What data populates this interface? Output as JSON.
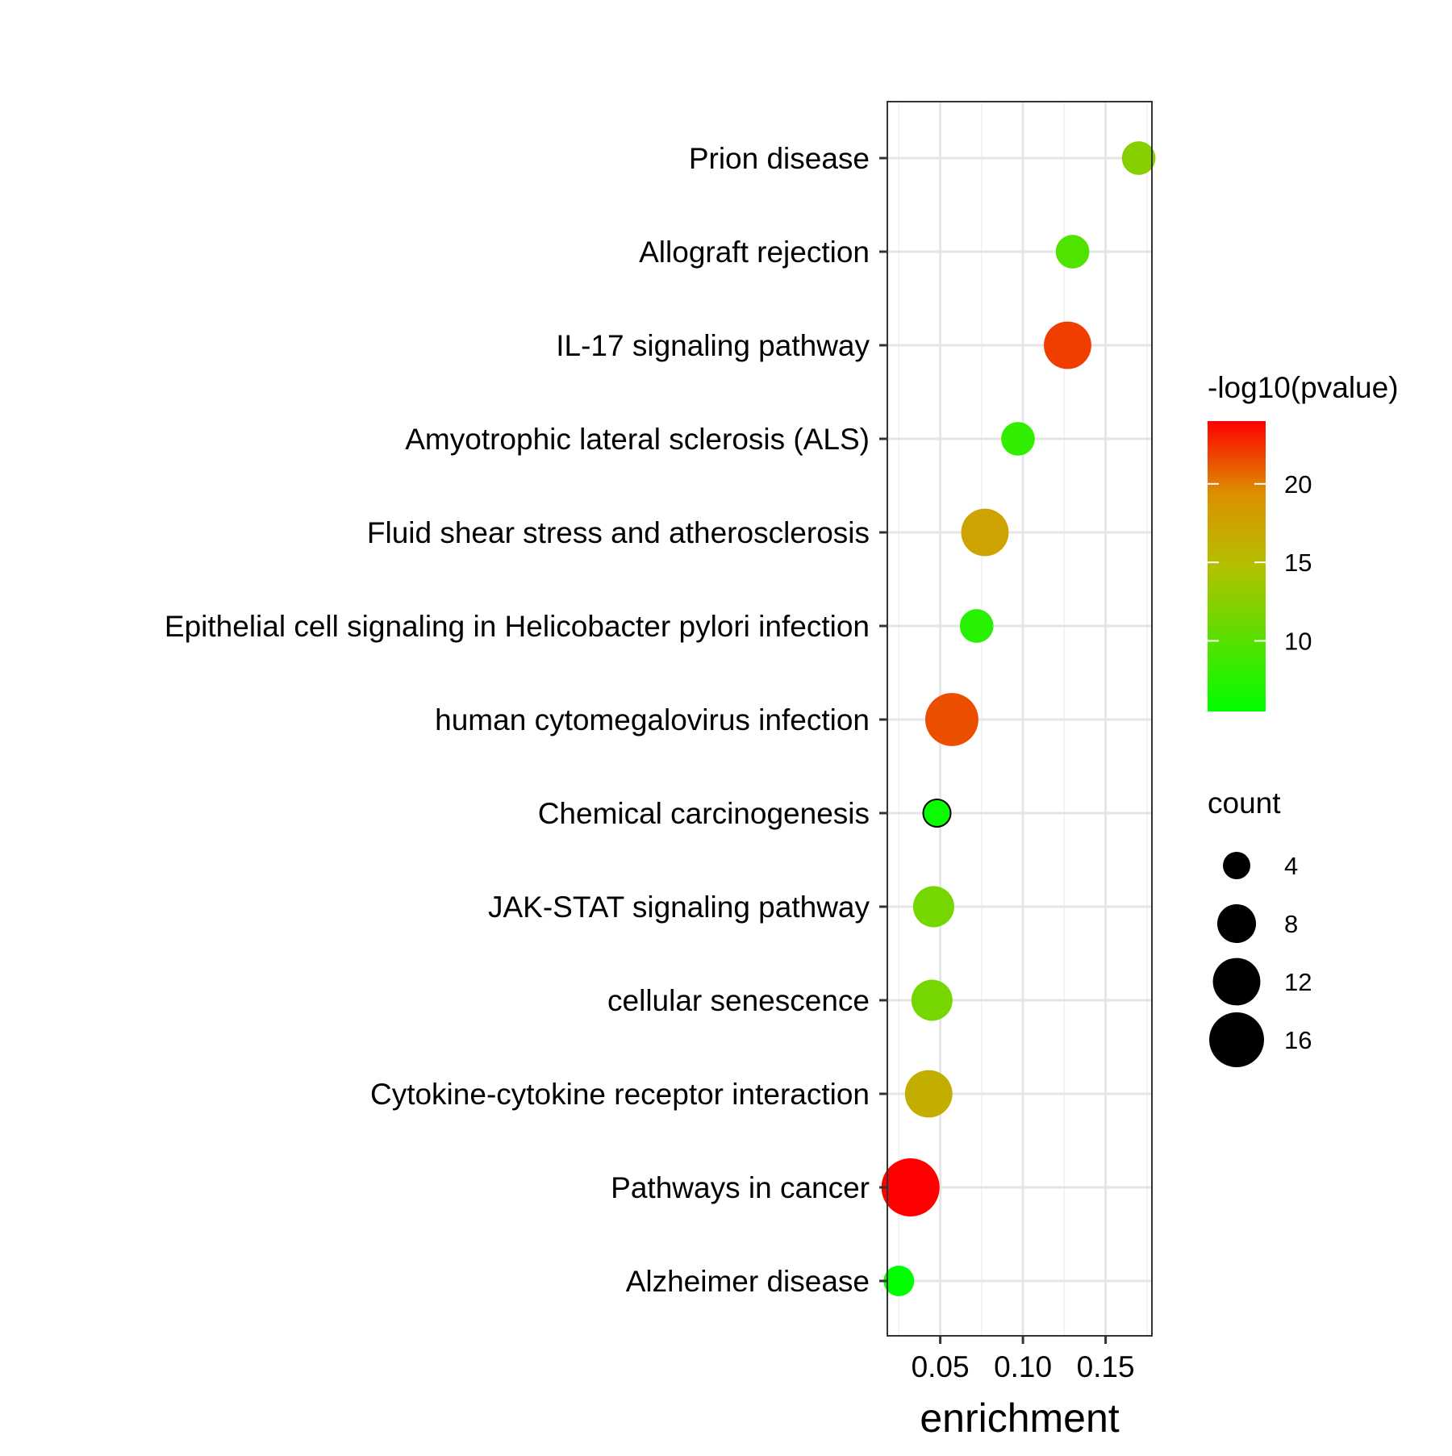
{
  "chart_data": {
    "type": "scatter",
    "xlabel": "enrichment",
    "ylabel": "",
    "xlim": [
      0.018,
      0.178
    ],
    "x_ticks": [
      0.05,
      0.1,
      0.15
    ],
    "x_tick_labels": [
      "0.05",
      "0.10",
      "0.15"
    ],
    "grid": true,
    "categories": [
      "Prion disease",
      "Allograft rejection",
      "IL-17 signaling pathway",
      "Amyotrophic lateral sclerosis (ALS)",
      "Fluid shear stress and atherosclerosis",
      "Epithelial cell signaling in Helicobacter pylori infection",
      "human cytomegalovirus infection",
      "Chemical carcinogenesis",
      "JAK-STAT signaling pathway",
      "cellular senescence",
      "Cytokine-cytokine receptor interaction",
      "Pathways in cancer",
      "Alzheimer disease"
    ],
    "points": [
      {
        "category": "Prion disease",
        "enrichment": 0.17,
        "count": 6,
        "neg_log10_pvalue": 12.5
      },
      {
        "category": "Allograft rejection",
        "enrichment": 0.13,
        "count": 6,
        "neg_log10_pvalue": 9.5
      },
      {
        "category": "IL-17 signaling pathway",
        "enrichment": 0.127,
        "count": 12,
        "neg_log10_pvalue": 22
      },
      {
        "category": "Amyotrophic lateral sclerosis (ALS)",
        "enrichment": 0.097,
        "count": 6,
        "neg_log10_pvalue": 8
      },
      {
        "category": "Fluid shear stress and atherosclerosis",
        "enrichment": 0.077,
        "count": 12,
        "neg_log10_pvalue": 17.5
      },
      {
        "category": "Epithelial cell signaling in Helicobacter pylori infection",
        "enrichment": 0.072,
        "count": 6,
        "neg_log10_pvalue": 7.5
      },
      {
        "category": "human cytomegalovirus infection",
        "enrichment": 0.057,
        "count": 15,
        "neg_log10_pvalue": 21.5
      },
      {
        "category": "Chemical carcinogenesis",
        "enrichment": 0.048,
        "count": 4,
        "neg_log10_pvalue": 6
      },
      {
        "category": "JAK-STAT signaling pathway",
        "enrichment": 0.046,
        "count": 9,
        "neg_log10_pvalue": 11.5
      },
      {
        "category": "cellular senescence",
        "enrichment": 0.045,
        "count": 9,
        "neg_log10_pvalue": 11.5
      },
      {
        "category": "Cytokine-cytokine receptor interaction",
        "enrichment": 0.043,
        "count": 12,
        "neg_log10_pvalue": 16.5
      },
      {
        "category": "Pathways in cancer",
        "enrichment": 0.032,
        "count": 18,
        "neg_log10_pvalue": 24
      },
      {
        "category": "Alzheimer disease",
        "enrichment": 0.025,
        "count": 5,
        "neg_log10_pvalue": 5.5
      }
    ],
    "color_legend": {
      "title": "-log10(pvalue)",
      "range": [
        5.5,
        24
      ],
      "ticks": [
        10,
        15,
        20
      ],
      "tick_labels": [
        "10",
        "15",
        "20"
      ],
      "gradient": [
        "#00ff00",
        "#ff0000"
      ]
    },
    "size_legend": {
      "title": "count",
      "values": [
        4,
        8,
        12,
        16
      ],
      "labels": [
        "4",
        "8",
        "12",
        "16"
      ]
    },
    "legend_position": "right"
  }
}
